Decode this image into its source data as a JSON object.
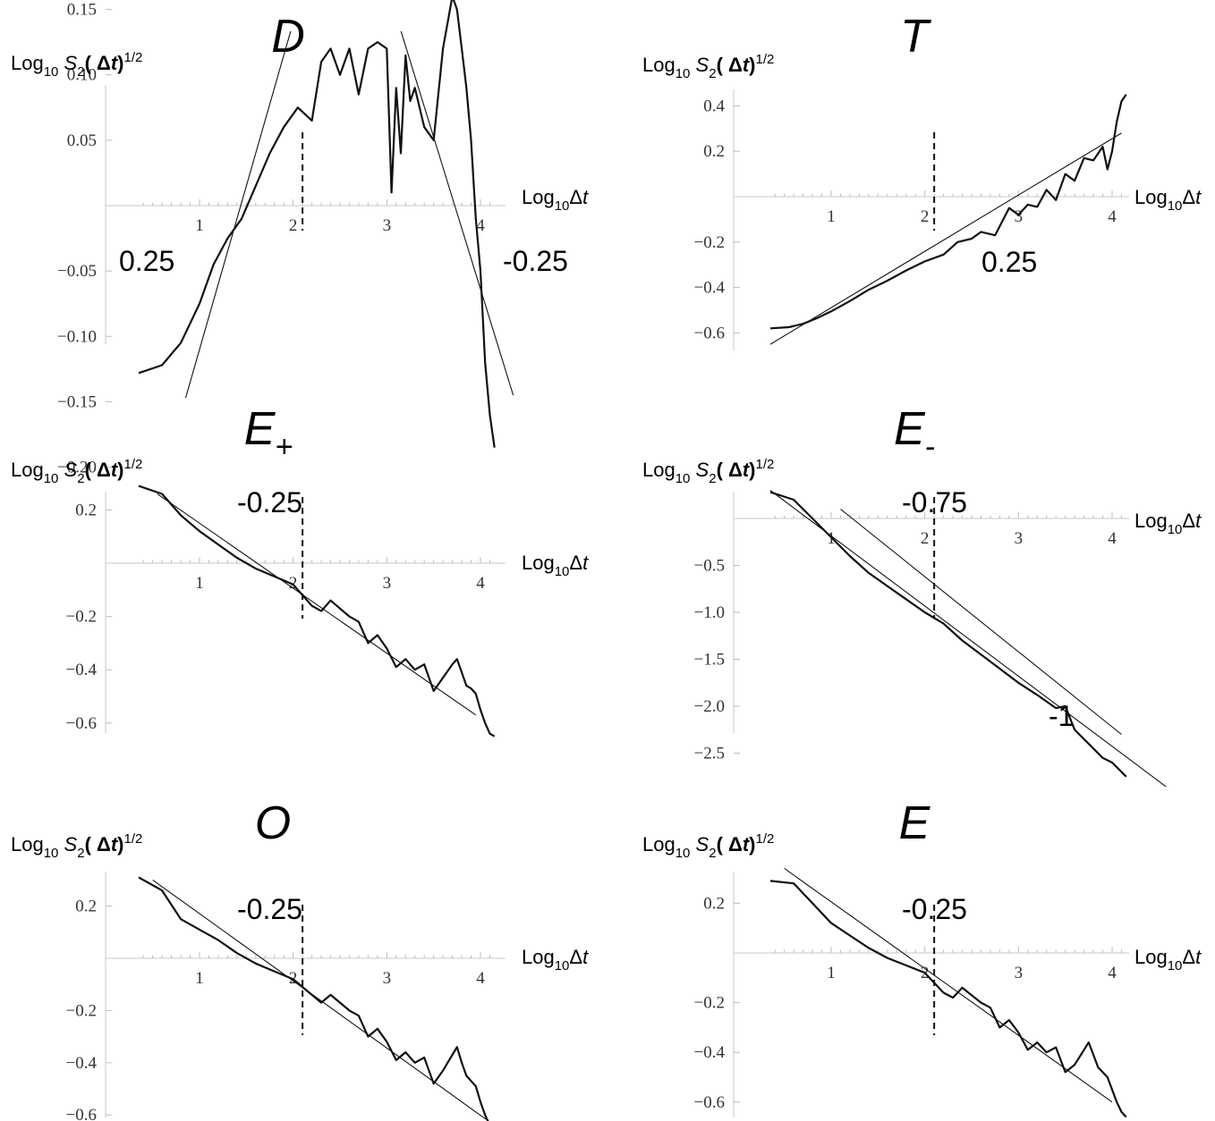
{
  "chart_data": [
    {
      "type": "line",
      "title": "D",
      "title_subscript": "",
      "ylabel": "Log10 S2( Δt)1/2",
      "xlabel": "Log10Δt",
      "xlim": [
        0.35,
        4.2
      ],
      "ylim": [
        -0.2,
        0.17
      ],
      "x_ticks": [
        1,
        2,
        3,
        4
      ],
      "y_ticks": [
        0.15,
        0.1,
        0.05,
        -0.05,
        -0.1,
        -0.15,
        -0.2
      ],
      "y_tick_labels": [
        "0.15",
        "0.10",
        "0.05",
        "−0.05",
        "−0.10",
        "−0.15",
        "−0.20"
      ],
      "dashed_x": 2.1,
      "series": [
        {
          "x": [
            0.35,
            0.6,
            0.8,
            1.0,
            1.15,
            1.3,
            1.45,
            1.6,
            1.75,
            1.9,
            2.05,
            2.2,
            2.3,
            2.4,
            2.5,
            2.6,
            2.7,
            2.8,
            2.9,
            3.0,
            3.05,
            3.1,
            3.15,
            3.2,
            3.25,
            3.3,
            3.4,
            3.5,
            3.6,
            3.7,
            3.75,
            3.8,
            3.85,
            3.9,
            3.95,
            4.0,
            4.05,
            4.1,
            4.15
          ],
          "y": [
            -0.128,
            -0.122,
            -0.105,
            -0.075,
            -0.045,
            -0.025,
            -0.01,
            0.015,
            0.04,
            0.06,
            0.075,
            0.065,
            0.11,
            0.12,
            0.1,
            0.12,
            0.085,
            0.12,
            0.125,
            0.12,
            0.01,
            0.09,
            0.04,
            0.115,
            0.08,
            0.09,
            0.06,
            0.05,
            0.12,
            0.16,
            0.15,
            0.12,
            0.09,
            0.05,
            -0.01,
            -0.05,
            -0.12,
            -0.16,
            -0.185
          ]
        }
      ],
      "fit_lines": [
        {
          "x": [
            0.8,
            2.2
          ],
          "y": [
            -0.16,
            0.19
          ],
          "slope_label": "0.25"
        },
        {
          "x": [
            2.8,
            4.35
          ],
          "y": [
            0.215,
            -0.145
          ],
          "slope_label": "-0.25"
        }
      ]
    },
    {
      "type": "line",
      "title": "T",
      "title_subscript": "",
      "ylabel": "Log10 S2( Δt)1/2",
      "xlabel": "Log10Δt",
      "xlim": [
        0.35,
        4.2
      ],
      "ylim": [
        -0.65,
        0.45
      ],
      "x_ticks": [
        1,
        2,
        3,
        4
      ],
      "y_ticks": [
        0.4,
        0.2,
        -0.2,
        -0.4,
        -0.6
      ],
      "y_tick_labels": [
        "0.4",
        "0.2",
        "−0.2",
        "−0.4",
        "−0.6"
      ],
      "dashed_x": 2.1,
      "series": [
        {
          "x": [
            0.35,
            0.55,
            0.7,
            0.85,
            1.0,
            1.2,
            1.4,
            1.6,
            1.8,
            2.0,
            2.2,
            2.35,
            2.5,
            2.6,
            2.75,
            2.9,
            3.0,
            3.1,
            3.2,
            3.3,
            3.4,
            3.5,
            3.6,
            3.7,
            3.8,
            3.9,
            3.95,
            4.0,
            4.05,
            4.1,
            4.15
          ],
          "y": [
            -0.58,
            -0.575,
            -0.56,
            -0.535,
            -0.505,
            -0.46,
            -0.41,
            -0.37,
            -0.325,
            -0.285,
            -0.255,
            -0.2,
            -0.185,
            -0.155,
            -0.17,
            -0.05,
            -0.08,
            -0.035,
            -0.045,
            0.03,
            -0.015,
            0.1,
            0.07,
            0.17,
            0.16,
            0.22,
            0.12,
            0.2,
            0.33,
            0.42,
            0.45
          ]
        }
      ],
      "fit_lines": [
        {
          "x": [
            0.35,
            4.1
          ],
          "y": [
            -0.65,
            0.28
          ],
          "slope_label": "0.25"
        }
      ]
    },
    {
      "type": "line",
      "title": "E",
      "title_subscript": "+",
      "ylabel": "Log10 S2( Δt)1/2",
      "xlabel": "Log10Δt",
      "xlim": [
        0.35,
        4.2
      ],
      "ylim": [
        -0.68,
        0.3
      ],
      "x_ticks": [
        1,
        2,
        3,
        4
      ],
      "y_ticks": [
        0.2,
        -0.2,
        -0.4,
        -0.6
      ],
      "y_tick_labels": [
        "0.2",
        "−0.2",
        "−0.4",
        "−0.6"
      ],
      "dashed_x": 2.1,
      "series": [
        {
          "x": [
            0.35,
            0.6,
            0.8,
            1.0,
            1.2,
            1.4,
            1.6,
            1.8,
            2.0,
            2.1,
            2.2,
            2.3,
            2.4,
            2.5,
            2.6,
            2.7,
            2.8,
            2.9,
            3.0,
            3.1,
            3.2,
            3.3,
            3.4,
            3.5,
            3.6,
            3.7,
            3.75,
            3.8,
            3.85,
            3.9,
            3.95,
            4.0,
            4.05,
            4.1,
            4.15
          ],
          "y": [
            0.29,
            0.26,
            0.18,
            0.12,
            0.07,
            0.02,
            -0.02,
            -0.05,
            -0.08,
            -0.12,
            -0.16,
            -0.18,
            -0.14,
            -0.17,
            -0.2,
            -0.22,
            -0.3,
            -0.27,
            -0.32,
            -0.39,
            -0.36,
            -0.4,
            -0.38,
            -0.48,
            -0.43,
            -0.38,
            -0.36,
            -0.41,
            -0.46,
            -0.47,
            -0.49,
            -0.55,
            -0.6,
            -0.64,
            -0.65
          ]
        }
      ],
      "fit_lines": [
        {
          "x": [
            0.55,
            3.95
          ],
          "y": [
            0.26,
            -0.57
          ],
          "slope_label": "-0.25"
        }
      ]
    },
    {
      "type": "line",
      "title": "E",
      "title_subscript": "-",
      "ylabel": "Log10 S2( Δt)1/2",
      "xlabel": "Log10Δt",
      "xlim": [
        0.35,
        4.2
      ],
      "ylim": [
        -2.8,
        0.3
      ],
      "x_ticks": [
        1,
        2,
        3,
        4
      ],
      "y_ticks": [
        -0.5,
        -1.0,
        -1.5,
        -2.0,
        -2.5
      ],
      "y_tick_labels": [
        "−0.5",
        "−1.0",
        "−1.5",
        "−2.0",
        "−2.5"
      ],
      "dashed_x": 2.1,
      "series": [
        {
          "x": [
            0.35,
            0.6,
            0.8,
            1.0,
            1.2,
            1.4,
            1.6,
            1.8,
            2.0,
            2.2,
            2.4,
            2.6,
            2.8,
            3.0,
            3.2,
            3.4,
            3.5,
            3.6,
            3.7,
            3.8,
            3.9,
            4.0,
            4.1,
            4.15
          ],
          "y": [
            0.28,
            0.2,
            0.0,
            -0.2,
            -0.4,
            -0.58,
            -0.72,
            -0.86,
            -1.0,
            -1.12,
            -1.3,
            -1.45,
            -1.6,
            -1.75,
            -1.88,
            -2.02,
            -2.0,
            -2.25,
            -2.35,
            -2.45,
            -2.55,
            -2.6,
            -2.7,
            -2.75
          ]
        }
      ],
      "fit_lines": [
        {
          "x": [
            0.35,
            4.9
          ],
          "y": [
            0.3,
            -3.1
          ],
          "slope_label": "-1"
        },
        {
          "x": [
            1.1,
            4.1
          ],
          "y": [
            0.1,
            -2.3
          ],
          "slope_label": "-0.75"
        }
      ]
    },
    {
      "type": "line",
      "title": "O",
      "title_subscript": "",
      "ylabel": "Log10 S2( Δt)1/2",
      "xlabel": "Log10Δt",
      "xlim": [
        0.35,
        4.2
      ],
      "ylim": [
        -0.68,
        0.34
      ],
      "x_ticks": [
        1,
        2,
        3,
        4
      ],
      "y_ticks": [
        0.2,
        -0.2,
        -0.4,
        -0.6
      ],
      "y_tick_labels": [
        "0.2",
        "−0.2",
        "−0.4",
        "−0.6"
      ],
      "dashed_x": 2.1,
      "series": [
        {
          "x": [
            0.35,
            0.6,
            0.8,
            1.0,
            1.2,
            1.4,
            1.6,
            1.8,
            2.0,
            2.1,
            2.2,
            2.3,
            2.4,
            2.5,
            2.6,
            2.7,
            2.8,
            2.9,
            3.0,
            3.1,
            3.2,
            3.3,
            3.4,
            3.5,
            3.6,
            3.7,
            3.75,
            3.8,
            3.85,
            3.9,
            3.95,
            4.0,
            4.05,
            4.1,
            4.15
          ],
          "y": [
            0.31,
            0.26,
            0.15,
            0.11,
            0.07,
            0.02,
            -0.02,
            -0.05,
            -0.08,
            -0.11,
            -0.14,
            -0.17,
            -0.14,
            -0.17,
            -0.2,
            -0.22,
            -0.3,
            -0.27,
            -0.32,
            -0.39,
            -0.36,
            -0.4,
            -0.38,
            -0.48,
            -0.43,
            -0.37,
            -0.34,
            -0.4,
            -0.45,
            -0.47,
            -0.49,
            -0.55,
            -0.6,
            -0.64,
            -0.65
          ]
        }
      ],
      "fit_lines": [
        {
          "x": [
            0.5,
            4.15
          ],
          "y": [
            0.3,
            -0.64
          ],
          "slope_label": "-0.25"
        }
      ]
    },
    {
      "type": "line",
      "title": "E",
      "title_subscript": "",
      "ylabel": "Log10 S2( Δt)1/2",
      "xlabel": "Log10Δt",
      "xlim": [
        0.35,
        4.2
      ],
      "ylim": [
        -0.68,
        0.34
      ],
      "x_ticks": [
        1,
        2,
        3,
        4
      ],
      "y_ticks": [
        0.2,
        -0.2,
        -0.4,
        -0.6
      ],
      "y_tick_labels": [
        "0.2",
        "−0.2",
        "−0.4",
        "−0.6"
      ],
      "dashed_x": 2.1,
      "series": [
        {
          "x": [
            0.35,
            0.6,
            0.8,
            1.0,
            1.2,
            1.4,
            1.6,
            1.8,
            2.0,
            2.1,
            2.2,
            2.3,
            2.4,
            2.5,
            2.6,
            2.7,
            2.8,
            2.9,
            3.0,
            3.1,
            3.2,
            3.3,
            3.4,
            3.5,
            3.6,
            3.7,
            3.75,
            3.8,
            3.85,
            3.9,
            3.95,
            4.0,
            4.05,
            4.1,
            4.15
          ],
          "y": [
            0.29,
            0.28,
            0.2,
            0.12,
            0.07,
            0.02,
            -0.02,
            -0.05,
            -0.08,
            -0.12,
            -0.16,
            -0.18,
            -0.14,
            -0.17,
            -0.2,
            -0.22,
            -0.3,
            -0.27,
            -0.32,
            -0.39,
            -0.36,
            -0.4,
            -0.38,
            -0.48,
            -0.45,
            -0.39,
            -0.36,
            -0.41,
            -0.46,
            -0.48,
            -0.5,
            -0.55,
            -0.6,
            -0.64,
            -0.66
          ]
        }
      ],
      "fit_lines": [
        {
          "x": [
            0.5,
            4.0
          ],
          "y": [
            0.34,
            -0.6
          ],
          "slope_label": "-0.25"
        }
      ]
    }
  ]
}
